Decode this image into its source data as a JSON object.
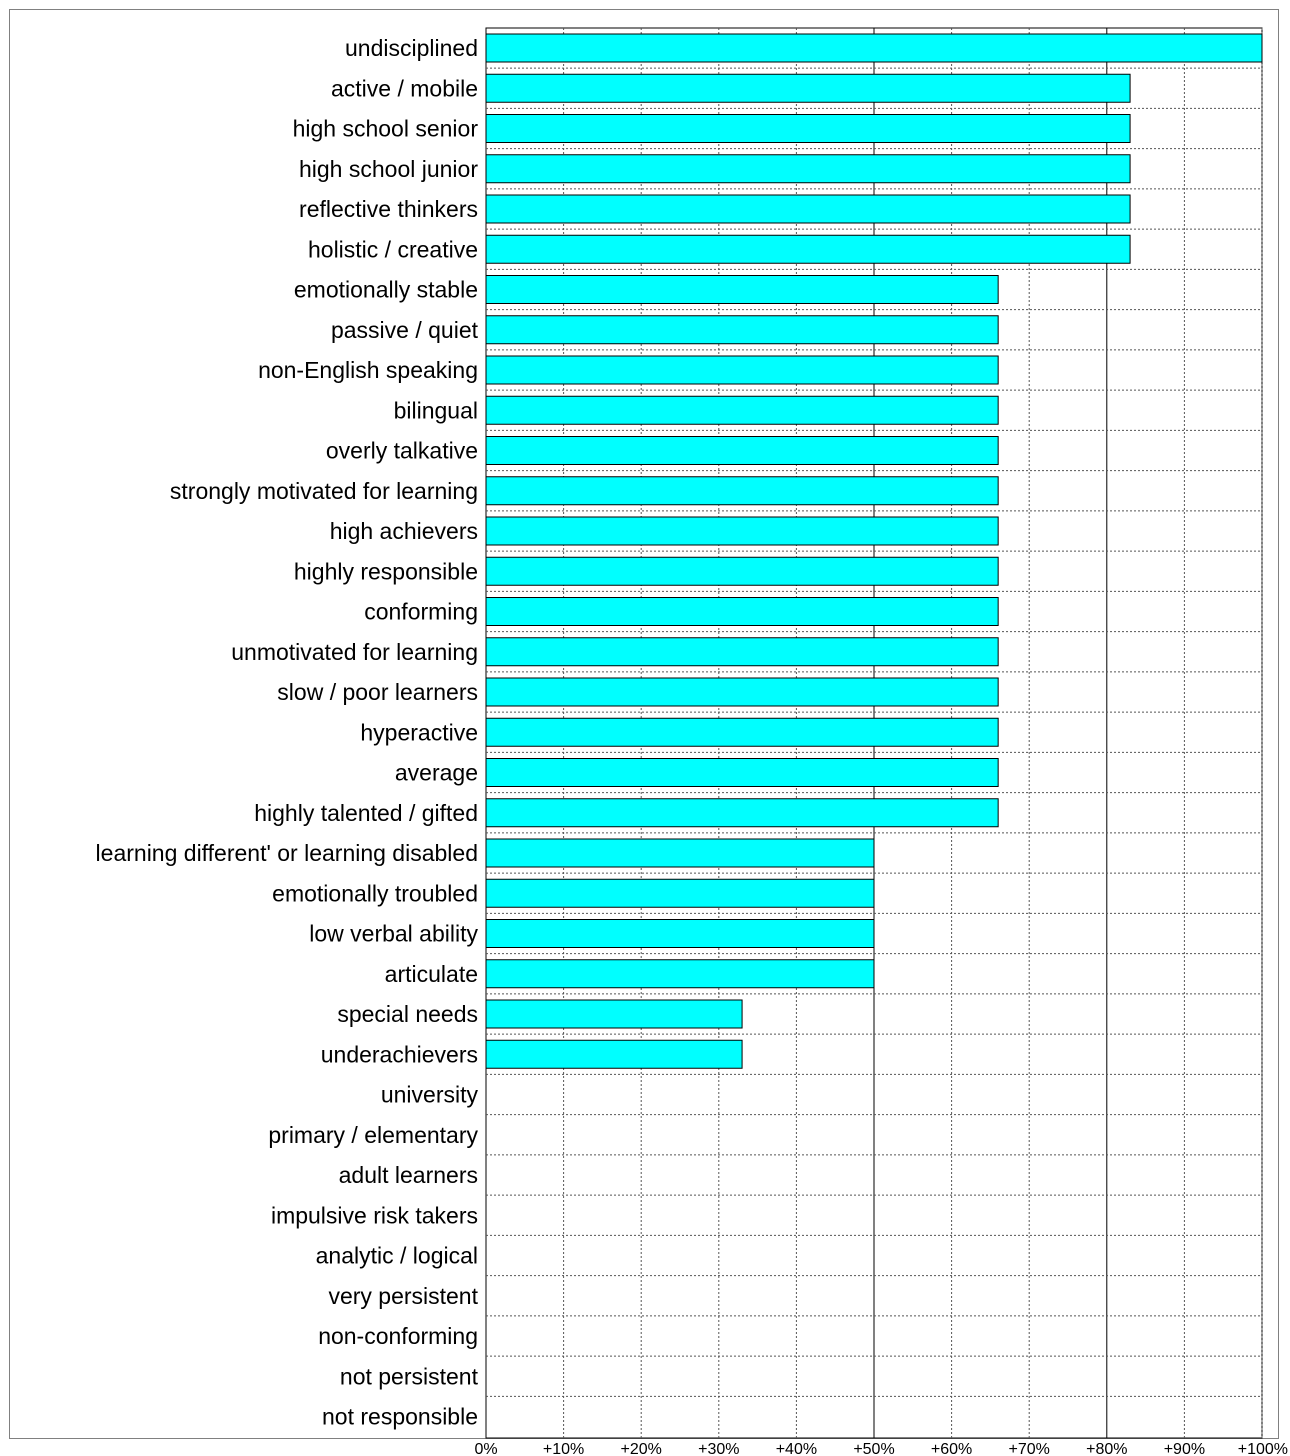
{
  "chart_data": {
    "type": "bar",
    "orientation": "horizontal",
    "categories": [
      "undisciplined",
      "active / mobile",
      "high school senior",
      "high school junior",
      "reflective thinkers",
      "holistic / creative",
      "emotionally stable",
      "passive / quiet",
      "non-English speaking",
      "bilingual",
      "overly talkative",
      "strongly motivated for learning",
      "high achievers",
      "highly responsible",
      "conforming",
      "unmotivated for learning",
      "slow / poor learners",
      "hyperactive",
      "average",
      "highly talented / gifted",
      "learning different' or learning disabled",
      "emotionally troubled",
      "low verbal ability",
      "articulate",
      "special needs",
      "underachievers",
      "university",
      "primary / elementary",
      "adult learners",
      "impulsive risk takers",
      "analytic / logical",
      "very persistent",
      "non-conforming",
      "not persistent",
      "not responsible"
    ],
    "values": [
      100,
      83,
      83,
      83,
      83,
      83,
      66,
      66,
      66,
      66,
      66,
      66,
      66,
      66,
      66,
      66,
      66,
      66,
      66,
      66,
      50,
      50,
      50,
      50,
      33,
      33,
      0,
      0,
      0,
      0,
      0,
      0,
      0,
      0,
      0
    ],
    "xticks": [
      "0%",
      "+10%",
      "+20%",
      "+30%",
      "+40%",
      "+50%",
      "+60%",
      "+70%",
      "+80%",
      "+90%",
      "+100%"
    ],
    "xlim": [
      0,
      100
    ],
    "major_lines": [
      50,
      80
    ],
    "grid": true,
    "bar_color": "#00ffff",
    "bar_edge_color": "#000000",
    "title": "",
    "xlabel": "",
    "ylabel": ""
  }
}
